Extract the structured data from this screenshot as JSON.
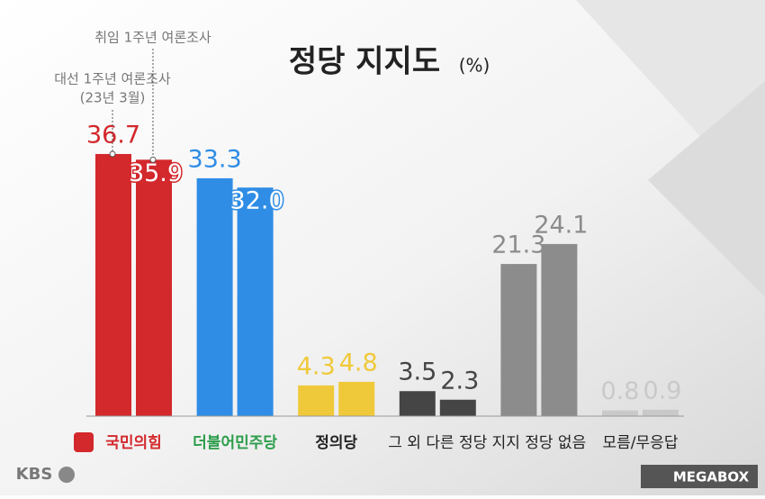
{
  "chart_data": {
    "type": "bar",
    "title": "정당 지지도",
    "unit": "(%)",
    "categories": [
      "국민의힘",
      "더불어민주당",
      "정의당",
      "그 외 다른 정당",
      "지지 정당 없음",
      "모름/무응답"
    ],
    "colors": [
      "#d3282c",
      "#2f8de6",
      "#f0c93a",
      "#454545",
      "#8c8c8c",
      "#c9c9c9"
    ],
    "series": [
      {
        "name": "대선 1주년 여론조사",
        "subname": "(23년 3월)",
        "values": [
          36.7,
          33.3,
          4.3,
          3.5,
          21.3,
          0.8
        ],
        "value_labels": [
          "36.7",
          "33.3",
          "4.3",
          "3.5",
          "21.3",
          "0.8"
        ]
      },
      {
        "name": "취임 1주년 여론조사",
        "values": [
          35.9,
          32.0,
          4.8,
          2.3,
          24.1,
          0.9
        ],
        "value_labels": [
          "35.9",
          "32.0",
          "4.8",
          "2.3",
          "24.1",
          "0.9"
        ]
      }
    ]
  },
  "branding": {
    "left": "KBS",
    "right": "MEGABOX"
  }
}
